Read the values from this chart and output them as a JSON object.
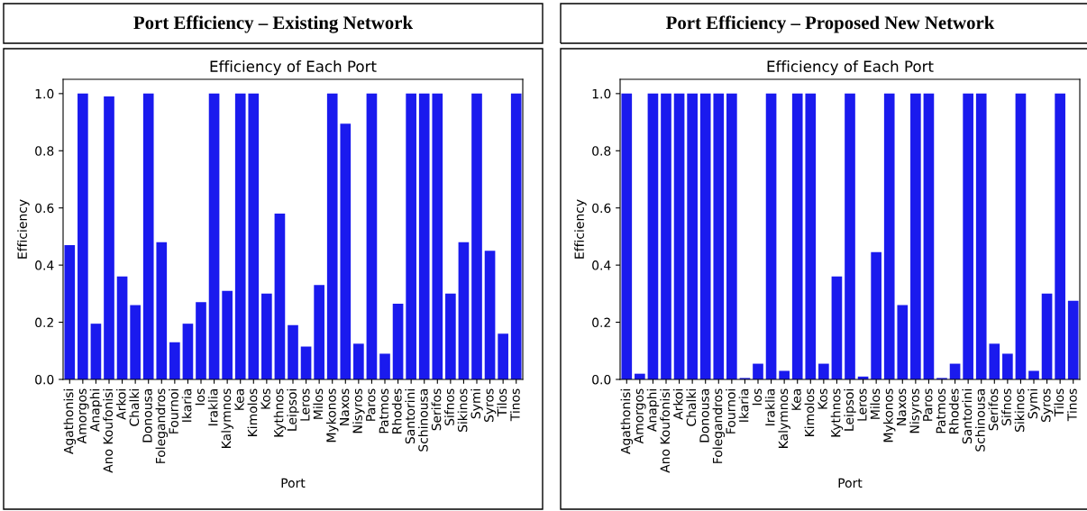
{
  "chart_data": [
    {
      "type": "bar",
      "title": "Port Efficiency – Existing Network",
      "subtitle": "Efficiency of Each Port",
      "xlabel": "Port",
      "ylabel": "Efficiency",
      "color": "#1a1aee",
      "categories": [
        "Agathonisi",
        "Amorgos",
        "Anaphi",
        "Ano Koufonisi",
        "Arkoi",
        "Chalki",
        "Donousa",
        "Folegandros",
        "Fournoi",
        "Ikaria",
        "Ios",
        "Iraklia",
        "Kalymnos",
        "Kea",
        "Kimolos",
        "Kos",
        "Kythnos",
        "Leipsoi",
        "Leros",
        "Milos",
        "Mykonos",
        "Naxos",
        "Nisyros",
        "Paros",
        "Patmos",
        "Rhodes",
        "Santorini",
        "Schinousa",
        "Serifos",
        "Sifnos",
        "Sikinos",
        "Symi",
        "Syros",
        "Tilos",
        "Tinos"
      ],
      "values": [
        0.47,
        1.0,
        0.195,
        0.99,
        0.36,
        0.26,
        1.0,
        0.48,
        0.13,
        0.195,
        0.27,
        1.0,
        0.31,
        1.0,
        1.0,
        0.3,
        0.58,
        0.19,
        0.115,
        0.33,
        1.0,
        0.895,
        0.125,
        1.0,
        0.09,
        0.265,
        1.0,
        1.0,
        1.0,
        0.3,
        0.48,
        1.0,
        0.45,
        0.16,
        1.0
      ],
      "ylim": [
        0,
        1.05
      ],
      "yticks": [
        {
          "value": 0,
          "label": "0.0"
        },
        {
          "value": 0.2,
          "label": "0.2"
        },
        {
          "value": 0.4,
          "label": "0.4"
        },
        {
          "value": 0.6,
          "label": "0.6"
        },
        {
          "value": 0.8,
          "label": "0.8"
        },
        {
          "value": 1.0,
          "label": "1.0"
        }
      ]
    },
    {
      "type": "bar",
      "title": "Port Efficiency – Proposed New Network",
      "subtitle": "Efficiency of Each Port",
      "xlabel": "Port",
      "ylabel": "Efficiency",
      "color": "#1a1aee",
      "categories": [
        "Agathonisi",
        "Amorgos",
        "Anaphi",
        "Ano Koufonisi",
        "Arkoi",
        "Chalki",
        "Donousa",
        "Folegandros",
        "Fournoi",
        "Ikaria",
        "Ios",
        "Iraklia",
        "Kalymnos",
        "Kea",
        "Kimolos",
        "Kos",
        "Kythnos",
        "Leipsoi",
        "Leros",
        "Milos",
        "Mykonos",
        "Naxos",
        "Nisyros",
        "Paros",
        "Patmos",
        "Rhodes",
        "Santorini",
        "Schinousa",
        "Serifos",
        "Sifnos",
        "Sikinos",
        "Symi",
        "Syros",
        "Tilos",
        "Tinos"
      ],
      "values": [
        1.0,
        0.02,
        1.0,
        1.0,
        1.0,
        1.0,
        1.0,
        1.0,
        1.0,
        0.005,
        0.055,
        1.0,
        0.03,
        1.0,
        1.0,
        0.055,
        0.36,
        1.0,
        0.01,
        0.445,
        1.0,
        0.26,
        1.0,
        1.0,
        0.005,
        0.055,
        1.0,
        1.0,
        0.125,
        0.09,
        1.0,
        0.03,
        0.3,
        1.0,
        0.275
      ],
      "ylim": [
        0,
        1.05
      ],
      "yticks": [
        {
          "value": 0,
          "label": "0.0"
        },
        {
          "value": 0.2,
          "label": "0.2"
        },
        {
          "value": 0.4,
          "label": "0.4"
        },
        {
          "value": 0.6,
          "label": "0.6"
        },
        {
          "value": 0.8,
          "label": "0.8"
        },
        {
          "value": 1.0,
          "label": "1.0"
        }
      ]
    }
  ]
}
